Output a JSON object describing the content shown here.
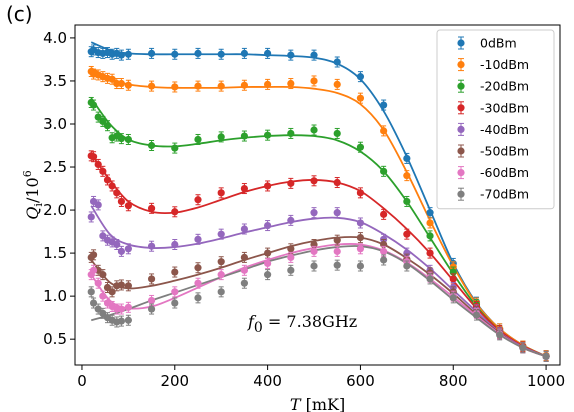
{
  "panel_label": "(c)",
  "chart_data": {
    "type": "scatter",
    "xlabel": "T [mK]",
    "ylabel": "Qi/10^6",
    "annotation": "f0 = 7.38GHz",
    "xlim": [
      -15,
      1030
    ],
    "ylim": [
      0.2,
      4.15
    ],
    "xticks": [
      0,
      200,
      400,
      600,
      800,
      1000
    ],
    "yticks": [
      0.5,
      1.0,
      1.5,
      2.0,
      2.5,
      3.0,
      3.5,
      4.0
    ],
    "xtick_labels": [
      "0",
      "200",
      "400",
      "600",
      "800",
      "1000"
    ],
    "ytick_labels": [
      "0.5",
      "1.0",
      "1.5",
      "2.0",
      "2.5",
      "3.0",
      "3.5",
      "4.0"
    ],
    "legend_position": "top-right",
    "grid": false,
    "series": [
      {
        "name": "0dBm",
        "color": "#1f77b4",
        "x": [
          20,
          25,
          35,
          45,
          55,
          65,
          75,
          85,
          100,
          150,
          200,
          250,
          300,
          350,
          400,
          450,
          500,
          550,
          600,
          650,
          700,
          750,
          800,
          850,
          900,
          950,
          1000
        ],
        "y": [
          3.84,
          3.86,
          3.83,
          3.82,
          3.83,
          3.81,
          3.82,
          3.8,
          3.81,
          3.82,
          3.81,
          3.82,
          3.81,
          3.82,
          3.82,
          3.8,
          3.8,
          3.72,
          3.55,
          3.22,
          2.6,
          1.97,
          1.38,
          0.93,
          0.62,
          0.42,
          0.31
        ],
        "fit_x": [
          20,
          60,
          100,
          150,
          200,
          250,
          300,
          350,
          400,
          450,
          500,
          550,
          600,
          650,
          700,
          750,
          800,
          850,
          900,
          950,
          1000
        ],
        "fit_y": [
          3.95,
          3.86,
          3.82,
          3.81,
          3.81,
          3.81,
          3.81,
          3.81,
          3.8,
          3.79,
          3.77,
          3.7,
          3.52,
          3.15,
          2.62,
          2.0,
          1.38,
          0.92,
          0.62,
          0.43,
          0.3
        ]
      },
      {
        "name": "-10dBm",
        "color": "#ff7f0e",
        "x": [
          20,
          25,
          35,
          45,
          55,
          65,
          75,
          85,
          100,
          150,
          200,
          250,
          300,
          350,
          400,
          450,
          500,
          550,
          600,
          650,
          700,
          750,
          800,
          850,
          900,
          950,
          1000
        ],
        "y": [
          3.61,
          3.58,
          3.57,
          3.55,
          3.53,
          3.52,
          3.47,
          3.47,
          3.45,
          3.44,
          3.43,
          3.44,
          3.44,
          3.45,
          3.46,
          3.47,
          3.5,
          3.46,
          3.3,
          2.92,
          2.4,
          1.85,
          1.34,
          0.92,
          0.62,
          0.42,
          0.31
        ],
        "fit_x": [
          20,
          60,
          100,
          150,
          200,
          250,
          300,
          350,
          400,
          450,
          500,
          550,
          600,
          650,
          700,
          750,
          800,
          850,
          900,
          950,
          1000
        ],
        "fit_y": [
          3.65,
          3.53,
          3.46,
          3.43,
          3.42,
          3.42,
          3.42,
          3.43,
          3.43,
          3.43,
          3.41,
          3.36,
          3.23,
          2.93,
          2.44,
          1.88,
          1.35,
          0.91,
          0.62,
          0.43,
          0.3
        ]
      },
      {
        "name": "-20dBm",
        "color": "#2ca02c",
        "x": [
          20,
          25,
          35,
          45,
          55,
          65,
          75,
          85,
          100,
          150,
          200,
          250,
          300,
          350,
          400,
          450,
          500,
          550,
          600,
          650,
          700,
          750,
          800,
          850,
          900,
          950,
          1000
        ],
        "y": [
          3.25,
          3.22,
          3.08,
          3.03,
          2.98,
          2.84,
          2.86,
          2.83,
          2.82,
          2.75,
          2.72,
          2.82,
          2.85,
          2.86,
          2.87,
          2.89,
          2.93,
          2.89,
          2.73,
          2.45,
          2.1,
          1.7,
          1.28,
          0.9,
          0.6,
          0.41,
          0.3
        ],
        "fit_x": [
          20,
          60,
          100,
          150,
          200,
          250,
          300,
          350,
          400,
          450,
          500,
          550,
          600,
          650,
          700,
          750,
          800,
          850,
          900,
          950,
          1000
        ],
        "fit_y": [
          3.3,
          3.0,
          2.82,
          2.75,
          2.74,
          2.77,
          2.81,
          2.84,
          2.86,
          2.87,
          2.86,
          2.81,
          2.68,
          2.45,
          2.1,
          1.68,
          1.26,
          0.88,
          0.6,
          0.42,
          0.3
        ]
      },
      {
        "name": "-30dBm",
        "color": "#d62728",
        "x": [
          20,
          25,
          35,
          45,
          55,
          65,
          75,
          85,
          100,
          150,
          200,
          250,
          300,
          350,
          400,
          450,
          500,
          550,
          600,
          650,
          700,
          750,
          800,
          850,
          900,
          950,
          1000
        ],
        "y": [
          2.63,
          2.62,
          2.53,
          2.45,
          2.35,
          2.28,
          2.2,
          2.1,
          2.05,
          2.02,
          1.98,
          2.12,
          2.2,
          2.25,
          2.28,
          2.31,
          2.34,
          2.32,
          2.2,
          1.95,
          1.72,
          1.5,
          1.2,
          0.88,
          0.6,
          0.41,
          0.3
        ],
        "fit_x": [
          20,
          60,
          100,
          150,
          200,
          250,
          300,
          350,
          400,
          450,
          500,
          550,
          600,
          650,
          700,
          750,
          800,
          850,
          900,
          950,
          1000
        ],
        "fit_y": [
          2.65,
          2.35,
          2.1,
          1.98,
          1.97,
          2.03,
          2.12,
          2.21,
          2.28,
          2.33,
          2.35,
          2.32,
          2.22,
          2.02,
          1.78,
          1.5,
          1.18,
          0.86,
          0.6,
          0.42,
          0.3
        ]
      },
      {
        "name": "-40dBm",
        "color": "#9467bd",
        "x": [
          20,
          25,
          35,
          45,
          55,
          65,
          75,
          85,
          100,
          150,
          200,
          250,
          300,
          350,
          400,
          450,
          500,
          550,
          600,
          650,
          700,
          750,
          800,
          850,
          900,
          950,
          1000
        ],
        "y": [
          1.92,
          2.1,
          2.06,
          1.7,
          1.65,
          1.63,
          1.6,
          1.52,
          1.55,
          1.58,
          1.6,
          1.66,
          1.72,
          1.78,
          1.82,
          1.88,
          1.97,
          1.97,
          1.85,
          1.66,
          1.5,
          1.3,
          1.1,
          0.84,
          0.58,
          0.4,
          0.3
        ],
        "fit_x": [
          20,
          60,
          100,
          150,
          200,
          250,
          300,
          350,
          400,
          450,
          500,
          550,
          600,
          650,
          700,
          750,
          800,
          850,
          900,
          950,
          1000
        ],
        "fit_y": [
          2.05,
          1.72,
          1.6,
          1.56,
          1.57,
          1.61,
          1.67,
          1.74,
          1.8,
          1.86,
          1.9,
          1.91,
          1.86,
          1.72,
          1.54,
          1.32,
          1.07,
          0.82,
          0.58,
          0.41,
          0.3
        ]
      },
      {
        "name": "-50dBm",
        "color": "#8c564b",
        "x": [
          20,
          25,
          35,
          45,
          55,
          65,
          75,
          85,
          100,
          150,
          200,
          250,
          300,
          350,
          400,
          450,
          500,
          550,
          600,
          650,
          700,
          750,
          800,
          850,
          900,
          950,
          1000
        ],
        "y": [
          1.45,
          1.48,
          1.3,
          1.25,
          1.1,
          1.05,
          1.12,
          1.13,
          1.12,
          1.2,
          1.28,
          1.33,
          1.4,
          1.45,
          1.5,
          1.55,
          1.6,
          1.65,
          1.68,
          1.6,
          1.43,
          1.27,
          1.05,
          0.82,
          0.57,
          0.4,
          0.3
        ],
        "fit_x": [
          20,
          60,
          100,
          150,
          200,
          250,
          300,
          350,
          400,
          450,
          500,
          550,
          600,
          650,
          700,
          750,
          800,
          850,
          900,
          950,
          1000
        ],
        "fit_y": [
          1.42,
          1.16,
          1.09,
          1.12,
          1.18,
          1.25,
          1.33,
          1.42,
          1.5,
          1.58,
          1.64,
          1.68,
          1.68,
          1.6,
          1.44,
          1.25,
          1.03,
          0.79,
          0.57,
          0.4,
          0.3
        ]
      },
      {
        "name": "-60dBm",
        "color": "#e377c2",
        "x": [
          20,
          25,
          35,
          45,
          55,
          65,
          75,
          85,
          100,
          150,
          200,
          250,
          300,
          350,
          400,
          450,
          500,
          550,
          600,
          650,
          700,
          750,
          800,
          850,
          900,
          950,
          1000
        ],
        "y": [
          1.25,
          1.3,
          1.15,
          1.0,
          0.92,
          0.88,
          0.85,
          0.85,
          0.87,
          0.95,
          1.05,
          1.15,
          1.25,
          1.3,
          1.38,
          1.45,
          1.52,
          1.52,
          1.55,
          1.52,
          1.4,
          1.22,
          1.0,
          0.8,
          0.56,
          0.4,
          0.3
        ],
        "fit_x": [
          20,
          60,
          100,
          150,
          200,
          250,
          300,
          350,
          400,
          450,
          500,
          550,
          600,
          650,
          700,
          750,
          800,
          850,
          900,
          950,
          1000
        ],
        "fit_y": [
          1.25,
          0.95,
          0.86,
          0.88,
          0.98,
          1.1,
          1.22,
          1.33,
          1.42,
          1.5,
          1.56,
          1.6,
          1.6,
          1.53,
          1.39,
          1.2,
          0.99,
          0.77,
          0.56,
          0.4,
          0.3
        ]
      },
      {
        "name": "-70dBm",
        "color": "#7f7f7f",
        "x": [
          20,
          25,
          35,
          45,
          55,
          65,
          75,
          85,
          100,
          150,
          200,
          250,
          300,
          350,
          400,
          450,
          500,
          550,
          600,
          650,
          700,
          750,
          800,
          850,
          900,
          950,
          1000
        ],
        "y": [
          1.05,
          0.92,
          0.85,
          0.8,
          0.75,
          0.72,
          0.7,
          0.71,
          0.72,
          0.85,
          0.92,
          0.98,
          1.05,
          1.15,
          1.25,
          1.3,
          1.35,
          1.36,
          1.35,
          1.42,
          1.35,
          1.2,
          0.98,
          0.78,
          0.55,
          0.4,
          0.3
        ],
        "fit_x": [
          20,
          60,
          100,
          150,
          200,
          250,
          300,
          350,
          400,
          450,
          500,
          550,
          600,
          650,
          700,
          750,
          800,
          850,
          900,
          950,
          1000
        ],
        "fit_y": [
          0.72,
          0.78,
          0.85,
          0.95,
          1.04,
          1.13,
          1.22,
          1.31,
          1.4,
          1.47,
          1.53,
          1.57,
          1.58,
          1.52,
          1.38,
          1.18,
          0.96,
          0.75,
          0.55,
          0.4,
          0.3
        ]
      }
    ]
  }
}
